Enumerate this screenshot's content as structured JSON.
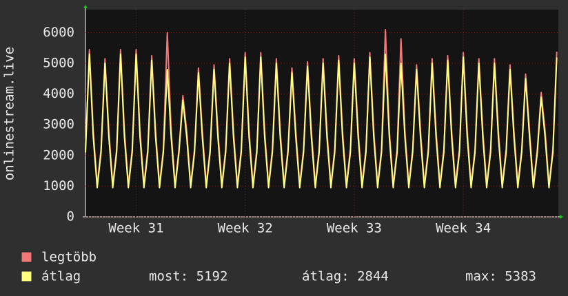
{
  "chart_data": {
    "type": "line",
    "ylabel": "onlinestream.live",
    "x": [
      0,
      0.25,
      0.5,
      0.75,
      1,
      1.25,
      1.5,
      1.75,
      2,
      2.25,
      2.5,
      2.75,
      3,
      3.25,
      3.5,
      3.75,
      4,
      4.25,
      4.5,
      4.75,
      5,
      5.25,
      5.5,
      5.75,
      6,
      6.25,
      6.5,
      6.75,
      7,
      7.25,
      7.5,
      7.75,
      8,
      8.25,
      8.5,
      8.75,
      9,
      9.25,
      9.5,
      9.75,
      10,
      10.25,
      10.5,
      10.75,
      11,
      11.25,
      11.5,
      11.75,
      12,
      12.25,
      12.5,
      12.75,
      13,
      13.25,
      13.5,
      13.75,
      14,
      14.25,
      14.5,
      14.75,
      15,
      15.25,
      15.5,
      15.75,
      16,
      16.25,
      16.5,
      16.75,
      17,
      17.25,
      17.5,
      17.75,
      18,
      18.25,
      18.5,
      18.75,
      19,
      19.25,
      19.5,
      19.75,
      20,
      20.25,
      20.5,
      20.75,
      21,
      21.25,
      21.5,
      21.75,
      22,
      22.25,
      22.5,
      22.75,
      23,
      23.25,
      23.5,
      23.75,
      24,
      24.25,
      24.5,
      24.75,
      25,
      25.25,
      25.5,
      25.75,
      26,
      26.25,
      26.5,
      26.75,
      27,
      27.25,
      27.5,
      27.75,
      28,
      28.25,
      28.5,
      28.75,
      29,
      29.25,
      29.5,
      29.75,
      30,
      30.25
    ],
    "series": [
      {
        "name": "legtöbb",
        "color": "#f07878",
        "values": [
          2200,
          5450,
          2800,
          1050,
          2200,
          5150,
          2800,
          1050,
          2200,
          5450,
          2800,
          1050,
          2200,
          5450,
          2800,
          1050,
          2200,
          5250,
          2800,
          1050,
          2200,
          6000,
          2800,
          1050,
          2200,
          3950,
          2800,
          1050,
          2200,
          4850,
          2800,
          1050,
          2200,
          4950,
          2800,
          1050,
          2200,
          5150,
          2800,
          1050,
          2200,
          5350,
          2800,
          1050,
          2200,
          5350,
          2800,
          1050,
          2200,
          5150,
          2800,
          1050,
          2200,
          4850,
          2800,
          1050,
          2200,
          5050,
          2800,
          1050,
          2200,
          5150,
          2800,
          1050,
          2200,
          5250,
          2800,
          1050,
          2200,
          5150,
          2800,
          1050,
          2200,
          5350,
          2800,
          1050,
          2200,
          6100,
          2800,
          1050,
          2200,
          5800,
          2800,
          1050,
          2200,
          4950,
          2800,
          1050,
          2200,
          5150,
          2800,
          1050,
          2200,
          5250,
          2800,
          1050,
          2200,
          5350,
          2800,
          1050,
          2200,
          5150,
          2800,
          1050,
          2200,
          5150,
          2800,
          1050,
          2200,
          4950,
          2800,
          1050,
          2200,
          4650,
          2800,
          1050,
          2200,
          4050,
          2800,
          1050,
          2200,
          5383
        ]
      },
      {
        "name": "átlag",
        "color": "#ffff80",
        "values": [
          2100,
          5300,
          2600,
          950,
          2100,
          5000,
          2600,
          950,
          2100,
          5300,
          2600,
          950,
          2100,
          5300,
          2600,
          950,
          2100,
          5100,
          2600,
          950,
          2100,
          4800,
          2600,
          950,
          2100,
          3800,
          2600,
          950,
          2100,
          4700,
          2600,
          950,
          2100,
          4800,
          2600,
          950,
          2100,
          5000,
          2600,
          950,
          2100,
          5200,
          2600,
          950,
          2100,
          5200,
          2600,
          950,
          2100,
          5000,
          2600,
          950,
          2100,
          4700,
          2600,
          950,
          2100,
          4900,
          2600,
          950,
          2100,
          5000,
          2600,
          950,
          2100,
          5100,
          2600,
          950,
          2100,
          5000,
          2600,
          950,
          2100,
          5200,
          2600,
          950,
          2100,
          5300,
          2600,
          950,
          2100,
          5000,
          2600,
          950,
          2100,
          4800,
          2600,
          950,
          2100,
          5000,
          2600,
          950,
          2100,
          5100,
          2600,
          950,
          2100,
          5200,
          2600,
          950,
          2100,
          5000,
          2600,
          950,
          2100,
          5000,
          2600,
          950,
          2100,
          4800,
          2600,
          950,
          2100,
          4500,
          2600,
          950,
          2100,
          3900,
          2600,
          950,
          2100,
          5192
        ]
      }
    ],
    "stats": [
      "most: 5192",
      "átlag: 2844",
      "max: 5383"
    ],
    "xlim": [
      0,
      30.35
    ],
    "xticks": [
      {
        "value": 3.25,
        "label": "Week 31"
      },
      {
        "value": 10.25,
        "label": "Week 32"
      },
      {
        "value": 17.25,
        "label": "Week 33"
      },
      {
        "value": 24.25,
        "label": "Week 34"
      }
    ],
    "ylim": [
      0,
      6750
    ],
    "yticks": [
      0,
      1000,
      2000,
      3000,
      4000,
      5000,
      6000
    ],
    "grid": true
  }
}
